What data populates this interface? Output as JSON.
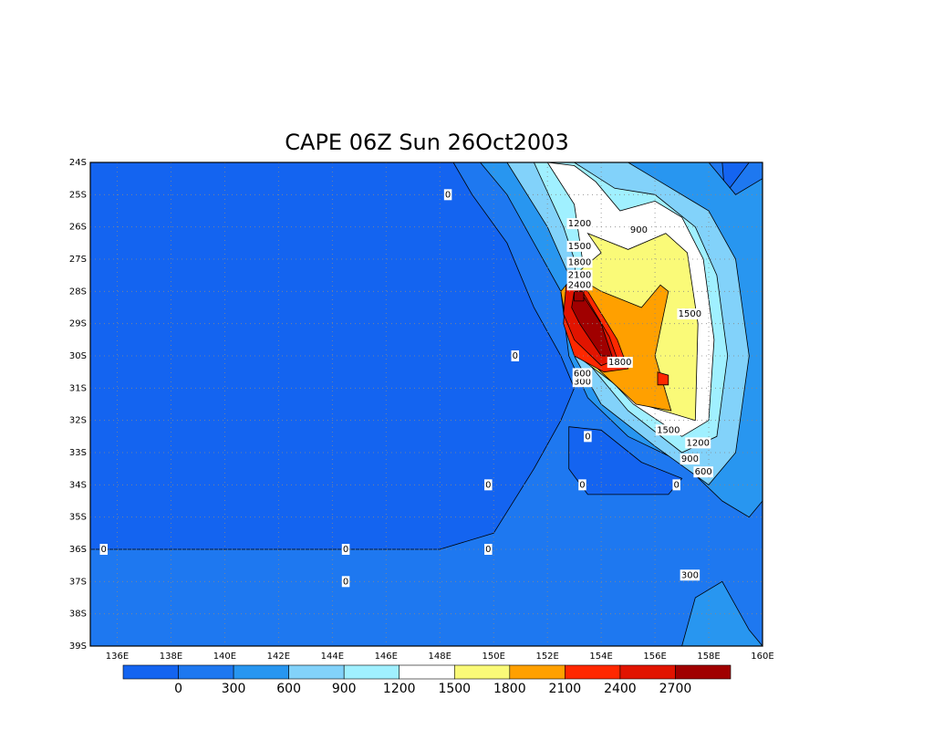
{
  "chart_data": {
    "type": "contour",
    "title": "CAPE 06Z Sun 26Oct2003",
    "xlim": [
      135,
      160
    ],
    "ylim": [
      -24,
      -39
    ],
    "xticks": [
      {
        "value": 136,
        "label": "136E"
      },
      {
        "value": 138,
        "label": "138E"
      },
      {
        "value": 140,
        "label": "140E"
      },
      {
        "value": 142,
        "label": "142E"
      },
      {
        "value": 144,
        "label": "144E"
      },
      {
        "value": 146,
        "label": "146E"
      },
      {
        "value": 148,
        "label": "148E"
      },
      {
        "value": 150,
        "label": "150E"
      },
      {
        "value": 152,
        "label": "152E"
      },
      {
        "value": 154,
        "label": "154E"
      },
      {
        "value": 156,
        "label": "156E"
      },
      {
        "value": 158,
        "label": "158E"
      },
      {
        "value": 160,
        "label": "160E"
      }
    ],
    "yticks": [
      {
        "value": -24,
        "label": "24S"
      },
      {
        "value": -25,
        "label": "25S"
      },
      {
        "value": -26,
        "label": "26S"
      },
      {
        "value": -27,
        "label": "27S"
      },
      {
        "value": -28,
        "label": "28S"
      },
      {
        "value": -29,
        "label": "29S"
      },
      {
        "value": -30,
        "label": "30S"
      },
      {
        "value": -31,
        "label": "31S"
      },
      {
        "value": -32,
        "label": "32S"
      },
      {
        "value": -33,
        "label": "33S"
      },
      {
        "value": -34,
        "label": "34S"
      },
      {
        "value": -35,
        "label": "35S"
      },
      {
        "value": -36,
        "label": "36S"
      },
      {
        "value": -37,
        "label": "37S"
      },
      {
        "value": -38,
        "label": "38S"
      },
      {
        "value": -39,
        "label": "39S"
      }
    ],
    "grid": true,
    "levels": [
      0,
      300,
      600,
      900,
      1200,
      1500,
      1800,
      2100,
      2400,
      2700
    ],
    "colors": [
      "#1464f0",
      "#1e78f0",
      "#2896f0",
      "#82d2fa",
      "#a0f0ff",
      "#ffffff",
      "#fafa78",
      "#ffa000",
      "#ff2800",
      "#e11400",
      "#a00000"
    ],
    "contour_labels": [
      0,
      0,
      0,
      0,
      0,
      0,
      0,
      0,
      0,
      0,
      300,
      300,
      600,
      600,
      900,
      900,
      1200,
      1200,
      1500,
      1500,
      1500,
      1800,
      1800,
      2100,
      2400
    ]
  }
}
